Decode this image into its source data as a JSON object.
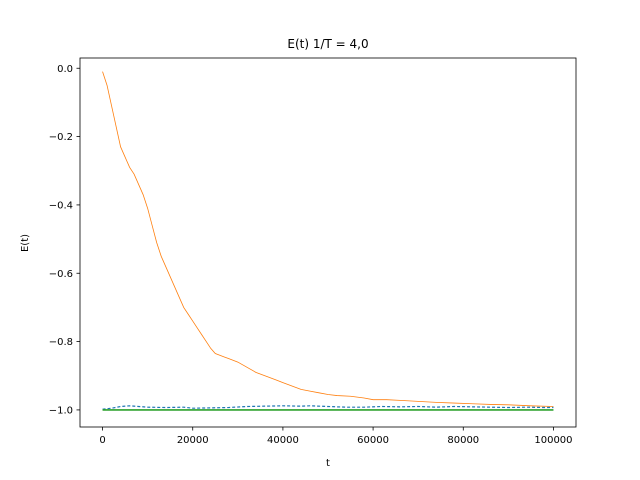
{
  "chart_data": {
    "type": "line",
    "title": "E(t) 1/T = 4,0",
    "xlabel": "t",
    "ylabel": "E(t)",
    "xlim": [
      -5000,
      105000
    ],
    "ylim": [
      -1.05,
      0.03
    ],
    "xticks": [
      0,
      20000,
      40000,
      60000,
      80000,
      100000
    ],
    "xtick_labels": [
      "0",
      "20000",
      "40000",
      "60000",
      "80000",
      "100000"
    ],
    "yticks": [
      0.0,
      -0.2,
      -0.4,
      -0.6,
      -0.8,
      -1.0
    ],
    "ytick_labels": [
      "0.0",
      "−0.2",
      "−0.4",
      "−0.6",
      "−0.8",
      "−1.0"
    ],
    "grid": false,
    "legend": "none",
    "series": [
      {
        "color": "#ff7f0e",
        "style": "solid",
        "x": [
          0,
          1000,
          2000,
          3000,
          4000,
          5000,
          6000,
          7000,
          8000,
          9000,
          10000,
          11000,
          12000,
          13000,
          14000,
          15000,
          16000,
          17000,
          18000,
          19000,
          20000,
          21000,
          22000,
          23000,
          24000,
          25000,
          26000,
          27000,
          28000,
          29000,
          30000,
          32000,
          34000,
          36000,
          38000,
          40000,
          42000,
          44000,
          46000,
          48000,
          50000,
          52000,
          55000,
          58000,
          60000,
          63000,
          66000,
          70000,
          74000,
          78000,
          82000,
          86000,
          90000,
          95000,
          100000
        ],
        "y": [
          -0.01,
          -0.05,
          -0.11,
          -0.17,
          -0.23,
          -0.26,
          -0.29,
          -0.31,
          -0.34,
          -0.37,
          -0.41,
          -0.46,
          -0.51,
          -0.55,
          -0.58,
          -0.61,
          -0.64,
          -0.67,
          -0.7,
          -0.72,
          -0.74,
          -0.76,
          -0.78,
          -0.8,
          -0.82,
          -0.835,
          -0.84,
          -0.845,
          -0.85,
          -0.855,
          -0.86,
          -0.875,
          -0.89,
          -0.9,
          -0.91,
          -0.92,
          -0.93,
          -0.94,
          -0.945,
          -0.95,
          -0.955,
          -0.958,
          -0.96,
          -0.965,
          -0.97,
          -0.97,
          -0.972,
          -0.975,
          -0.978,
          -0.98,
          -0.982,
          -0.984,
          -0.985,
          -0.988,
          -0.99
        ]
      },
      {
        "color": "#1f77b4",
        "style": "dashed",
        "x": [
          0,
          2000,
          4000,
          6000,
          8000,
          10000,
          14000,
          18000,
          20000,
          24000,
          28000,
          32000,
          36000,
          40000,
          44000,
          46000,
          50000,
          54000,
          58000,
          62000,
          66000,
          70000,
          74000,
          78000,
          82000,
          86000,
          90000,
          94000,
          98000,
          100000
        ],
        "y": [
          -0.998,
          -0.995,
          -0.99,
          -0.988,
          -0.99,
          -0.992,
          -0.993,
          -0.992,
          -0.995,
          -0.994,
          -0.993,
          -0.99,
          -0.989,
          -0.988,
          -0.989,
          -0.988,
          -0.99,
          -0.992,
          -0.992,
          -0.99,
          -0.991,
          -0.99,
          -0.992,
          -0.99,
          -0.991,
          -0.992,
          -0.993,
          -0.992,
          -0.993,
          -0.993
        ]
      },
      {
        "color": "#2ca02c",
        "style": "solid",
        "x": [
          0,
          100000
        ],
        "y": [
          -1.0,
          -1.0
        ]
      }
    ]
  }
}
